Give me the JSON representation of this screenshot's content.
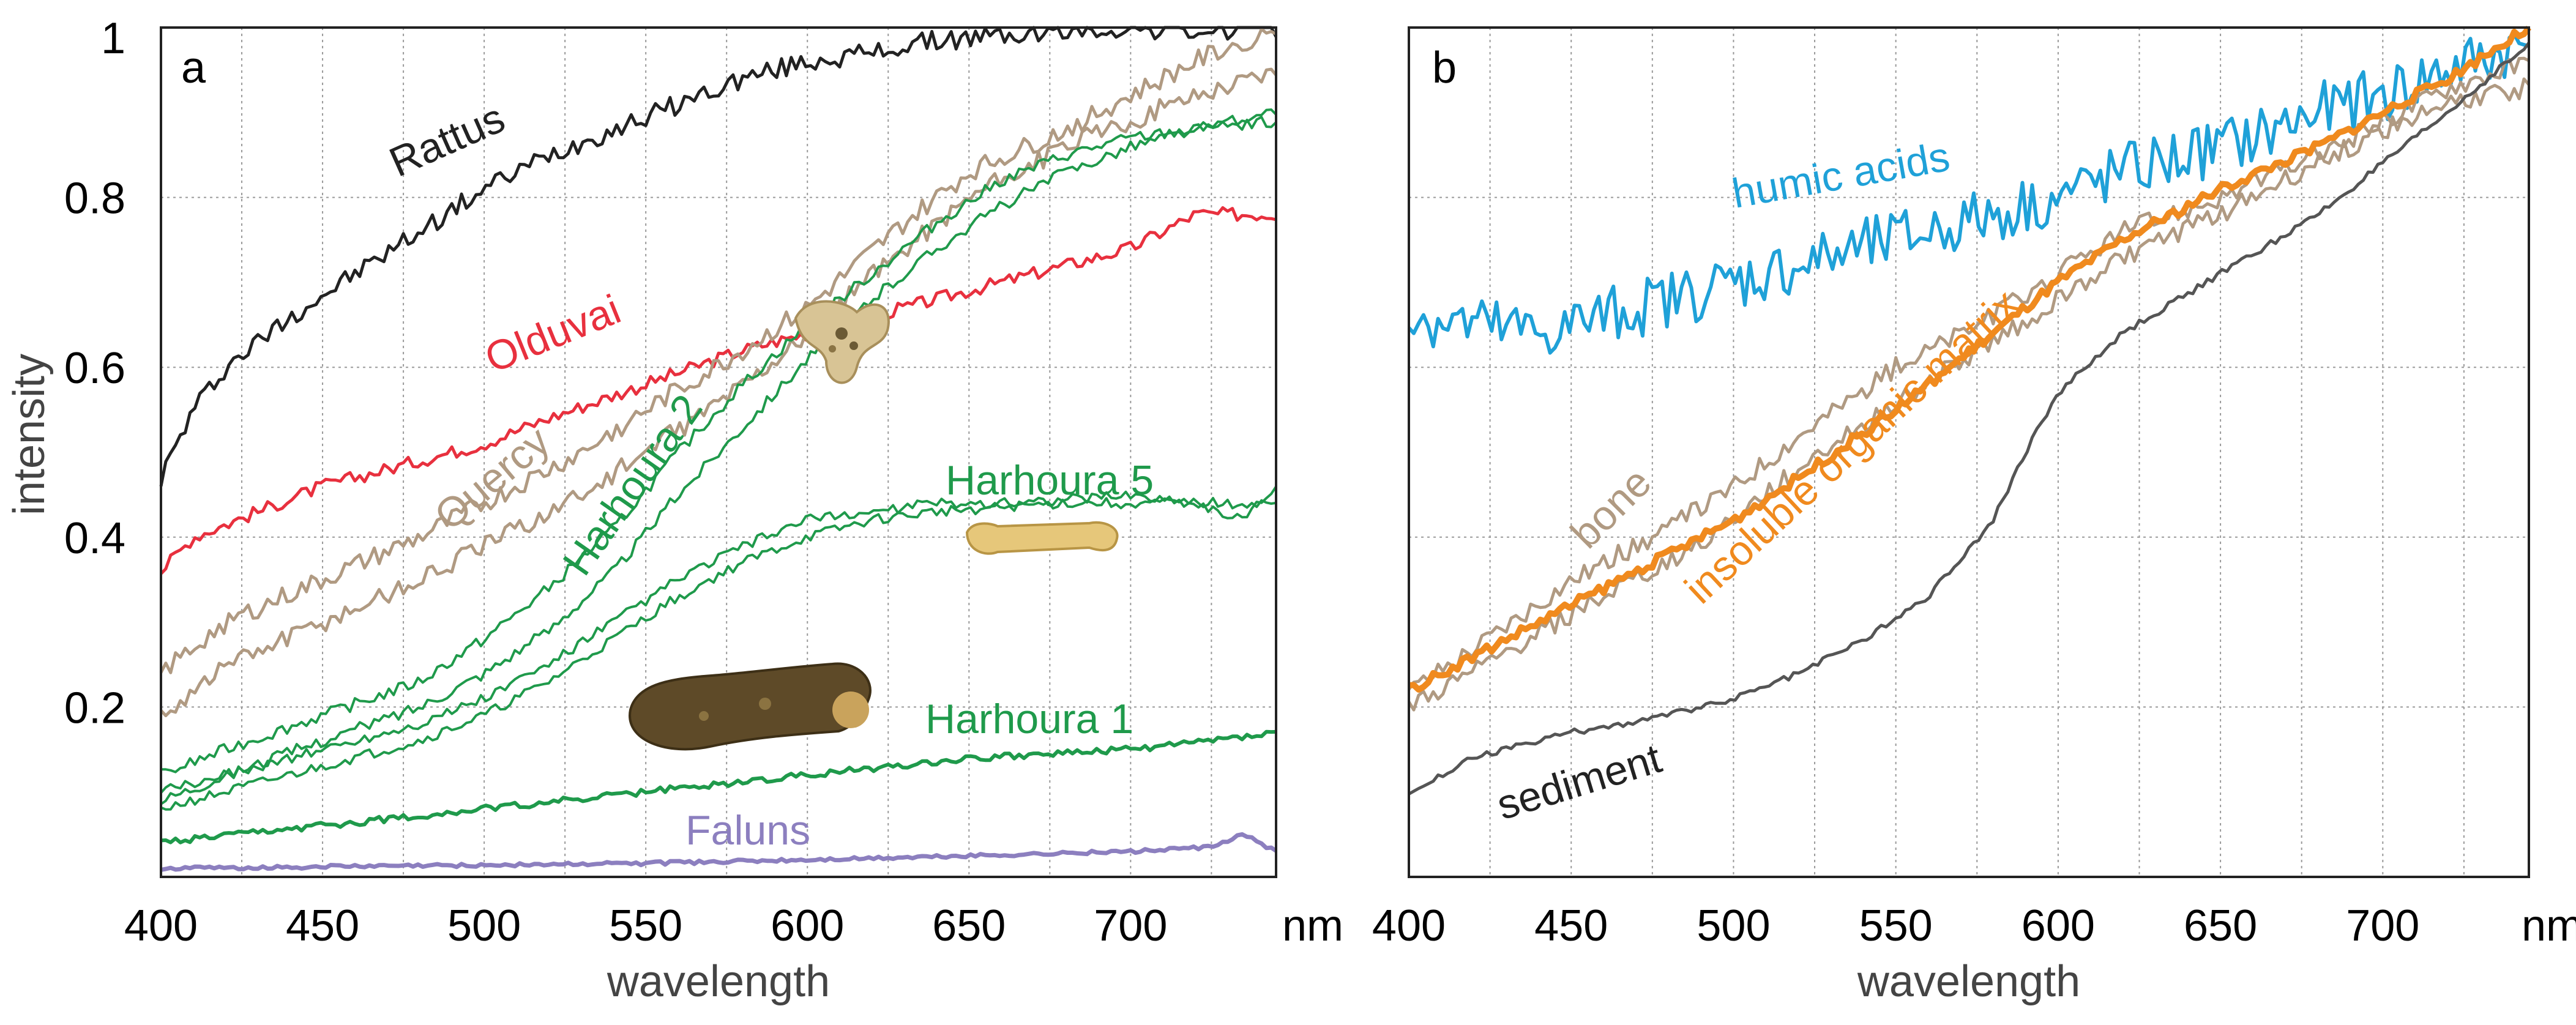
{
  "chart_data": [
    {
      "panel_label": "a",
      "type": "line",
      "xlabel": "wavelength",
      "x_unit_label": "nm",
      "ylabel": "intensity",
      "xlim": [
        400,
        745
      ],
      "ylim": [
        0,
        1.0
      ],
      "x_ticks": [
        "400",
        "450",
        "500",
        "550",
        "600",
        "650",
        "700"
      ],
      "y_ticks": [
        "0.2",
        "0.4",
        "0.6",
        "0.8",
        "1"
      ],
      "grid": true,
      "series": [
        {
          "name": "Rattus",
          "color": "#222222",
          "stroke": 5,
          "noise": 0.012,
          "x": [
            400,
            410,
            420,
            440,
            460,
            480,
            500,
            520,
            540,
            560,
            580,
            600,
            620,
            640,
            660,
            680,
            700,
            720,
            745
          ],
          "y": [
            0.47,
            0.55,
            0.6,
            0.66,
            0.71,
            0.76,
            0.81,
            0.85,
            0.88,
            0.91,
            0.94,
            0.96,
            0.97,
            0.985,
            0.99,
            0.995,
            1.0,
            0.995,
            1.0
          ]
        },
        {
          "name": "Olduvai",
          "color": "#e8303e",
          "stroke": 5,
          "noise": 0.008,
          "x": [
            400,
            410,
            430,
            450,
            470,
            500,
            520,
            550,
            580,
            600,
            630,
            650,
            680,
            700,
            720,
            745
          ],
          "y": [
            0.36,
            0.4,
            0.43,
            0.46,
            0.48,
            0.51,
            0.54,
            0.58,
            0.62,
            0.64,
            0.67,
            0.69,
            0.72,
            0.74,
            0.78,
            0.78
          ]
        },
        {
          "name": "Quercy",
          "color": "#b09a82",
          "stroke": 5,
          "noise": 0.012,
          "x": [
            400,
            420,
            450,
            480,
            500,
            530,
            550,
            580,
            600,
            630,
            650,
            680,
            700,
            720,
            745
          ],
          "y": [
            0.24,
            0.3,
            0.35,
            0.4,
            0.44,
            0.5,
            0.55,
            0.62,
            0.67,
            0.77,
            0.83,
            0.88,
            0.92,
            0.96,
            1.0
          ]
        },
        {
          "name": "Quercy (2)",
          "color": "#b09a82",
          "stroke": 5,
          "noise": 0.012,
          "x": [
            400,
            420,
            450,
            480,
            500,
            530,
            550,
            580,
            600,
            630,
            650,
            680,
            700,
            720,
            745
          ],
          "y": [
            0.19,
            0.25,
            0.3,
            0.35,
            0.39,
            0.45,
            0.5,
            0.58,
            0.64,
            0.74,
            0.8,
            0.86,
            0.89,
            0.92,
            0.95
          ]
        },
        {
          "name": "Harhoura 2",
          "color": "#1f9a4b",
          "stroke": 4,
          "noise": 0.007,
          "x": [
            400,
            420,
            450,
            480,
            500,
            520,
            540,
            560,
            580,
            600,
            620,
            640,
            660,
            680,
            700,
            720,
            745
          ],
          "y": [
            0.12,
            0.15,
            0.19,
            0.23,
            0.28,
            0.34,
            0.41,
            0.5,
            0.58,
            0.65,
            0.71,
            0.77,
            0.82,
            0.85,
            0.87,
            0.88,
            0.9
          ]
        },
        {
          "name": "Harhoura 2 (b)",
          "color": "#1f9a4b",
          "stroke": 4,
          "noise": 0.007,
          "x": [
            400,
            420,
            450,
            480,
            500,
            520,
            540,
            560,
            580,
            600,
            620,
            640,
            660,
            680,
            700,
            720,
            745
          ],
          "y": [
            0.09,
            0.12,
            0.16,
            0.2,
            0.24,
            0.29,
            0.36,
            0.45,
            0.53,
            0.61,
            0.68,
            0.74,
            0.79,
            0.83,
            0.86,
            0.88,
            0.89
          ]
        },
        {
          "name": "Harhoura 5",
          "color": "#1f9a4b",
          "stroke": 4,
          "noise": 0.006,
          "x": [
            400,
            420,
            450,
            480,
            500,
            520,
            540,
            560,
            580,
            600,
            620,
            640,
            660,
            680,
            700,
            720,
            735,
            745
          ],
          "y": [
            0.1,
            0.12,
            0.15,
            0.18,
            0.21,
            0.25,
            0.3,
            0.35,
            0.39,
            0.42,
            0.43,
            0.44,
            0.44,
            0.445,
            0.45,
            0.44,
            0.42,
            0.46
          ]
        },
        {
          "name": "Harhoura 5 (b)",
          "color": "#1f9a4b",
          "stroke": 4,
          "noise": 0.006,
          "x": [
            400,
            420,
            450,
            480,
            500,
            520,
            540,
            560,
            580,
            600,
            620,
            640,
            660,
            680,
            700,
            720,
            745
          ],
          "y": [
            0.08,
            0.1,
            0.13,
            0.16,
            0.19,
            0.23,
            0.28,
            0.33,
            0.37,
            0.4,
            0.42,
            0.43,
            0.435,
            0.44,
            0.44,
            0.44,
            0.44
          ]
        },
        {
          "name": "Harhoura 1",
          "color": "#1f9a4b",
          "stroke": 6,
          "noise": 0.004,
          "x": [
            400,
            450,
            500,
            550,
            600,
            650,
            700,
            745
          ],
          "y": [
            0.04,
            0.06,
            0.08,
            0.1,
            0.12,
            0.14,
            0.15,
            0.17
          ]
        },
        {
          "name": "Faluns",
          "color": "#8c7fbf",
          "stroke": 7,
          "noise": 0.002,
          "x": [
            400,
            450,
            500,
            550,
            600,
            650,
            700,
            725,
            735,
            745
          ],
          "y": [
            0.01,
            0.012,
            0.014,
            0.016,
            0.02,
            0.025,
            0.03,
            0.035,
            0.05,
            0.03
          ]
        }
      ],
      "annotations": [
        "Rattus",
        "Olduvai",
        "Quercy",
        "Harhoura 2",
        "Harhoura 5",
        "Harhoura 1",
        "Faluns"
      ]
    },
    {
      "panel_label": "b",
      "type": "line",
      "xlabel": "wavelength",
      "x_unit_label": "nm",
      "ylabel": "",
      "xlim": [
        400,
        745
      ],
      "ylim": [
        0,
        1.0
      ],
      "x_ticks": [
        "400",
        "450",
        "500",
        "550",
        "600",
        "650",
        "700"
      ],
      "y_ticks": [],
      "grid": true,
      "series": [
        {
          "name": "humic acids",
          "color": "#1fa1d8",
          "stroke": 6,
          "noise": 0.035,
          "x": [
            400,
            420,
            440,
            460,
            480,
            500,
            520,
            540,
            560,
            580,
            600,
            620,
            640,
            660,
            680,
            700,
            720,
            745
          ],
          "y": [
            0.66,
            0.65,
            0.64,
            0.66,
            0.68,
            0.7,
            0.72,
            0.74,
            0.76,
            0.78,
            0.8,
            0.83,
            0.85,
            0.87,
            0.9,
            0.92,
            0.95,
            0.98
          ]
        },
        {
          "name": "bone",
          "color": "#b09a82",
          "stroke": 5,
          "noise": 0.012,
          "x": [
            400,
            420,
            450,
            480,
            500,
            520,
            550,
            580,
            600,
            620,
            650,
            680,
            700,
            720,
            745
          ],
          "y": [
            0.22,
            0.27,
            0.35,
            0.41,
            0.46,
            0.52,
            0.6,
            0.66,
            0.71,
            0.76,
            0.8,
            0.85,
            0.89,
            0.93,
            0.96
          ]
        },
        {
          "name": "bone (2)",
          "color": "#b09a82",
          "stroke": 5,
          "noise": 0.012,
          "x": [
            400,
            420,
            450,
            480,
            500,
            520,
            550,
            580,
            600,
            620,
            650,
            680,
            700,
            720,
            745
          ],
          "y": [
            0.2,
            0.24,
            0.31,
            0.37,
            0.42,
            0.48,
            0.56,
            0.63,
            0.68,
            0.73,
            0.78,
            0.84,
            0.88,
            0.91,
            0.93
          ]
        },
        {
          "name": "insoluble organic matrix",
          "color": "#f08a1e",
          "stroke": 10,
          "noise": 0.006,
          "x": [
            400,
            420,
            450,
            480,
            500,
            520,
            550,
            580,
            600,
            620,
            650,
            680,
            700,
            720,
            745
          ],
          "y": [
            0.22,
            0.26,
            0.32,
            0.38,
            0.42,
            0.47,
            0.55,
            0.64,
            0.7,
            0.75,
            0.81,
            0.86,
            0.9,
            0.94,
            1.0
          ]
        },
        {
          "name": "sediment",
          "color": "#555555",
          "stroke": 5,
          "noise": 0.004,
          "x": [
            400,
            420,
            450,
            480,
            500,
            520,
            540,
            560,
            580,
            590,
            600,
            620,
            650,
            680,
            700,
            720,
            745
          ],
          "y": [
            0.1,
            0.14,
            0.17,
            0.19,
            0.21,
            0.24,
            0.28,
            0.33,
            0.42,
            0.5,
            0.57,
            0.64,
            0.71,
            0.78,
            0.84,
            0.9,
            0.98
          ]
        }
      ],
      "annotations": [
        "humic acids",
        "bone",
        "insoluble organic matrix",
        "sediment"
      ]
    }
  ]
}
